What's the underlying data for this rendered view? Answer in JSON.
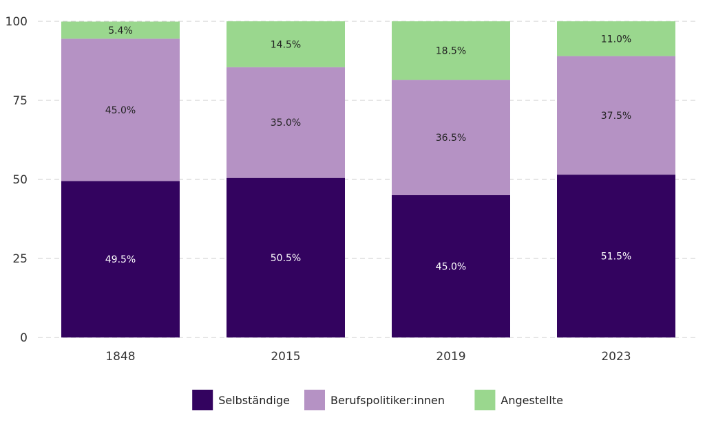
{
  "chart_data": {
    "type": "bar",
    "stacked": true,
    "categories": [
      "1848",
      "2015",
      "2019",
      "2023"
    ],
    "series": [
      {
        "name": "Selbständige",
        "color": "#33035f",
        "label_color": "#ffffff",
        "values": [
          49.5,
          50.5,
          45.0,
          51.5
        ],
        "labels": [
          "49.5%",
          "50.5%",
          "45.0%",
          "51.5%"
        ]
      },
      {
        "name": "Berufspolitiker:innen",
        "color": "#b592c4",
        "label_color": "#222222",
        "values": [
          45.0,
          35.0,
          36.5,
          37.5
        ],
        "labels": [
          "45.0%",
          "35.0%",
          "36.5%",
          "37.5%"
        ]
      },
      {
        "name": "Angestellte",
        "color": "#9ad78e",
        "label_color": "#222222",
        "values": [
          5.4,
          14.5,
          18.5,
          11.0
        ],
        "labels": [
          "5.4%",
          "14.5%",
          "18.5%",
          "11.0%"
        ]
      }
    ],
    "yticks": [
      "0",
      "25",
      "50",
      "75",
      "100"
    ],
    "ylim": [
      0,
      100
    ],
    "grid": true,
    "legend_position": "bottom",
    "title": "",
    "xlabel": "",
    "ylabel": ""
  }
}
